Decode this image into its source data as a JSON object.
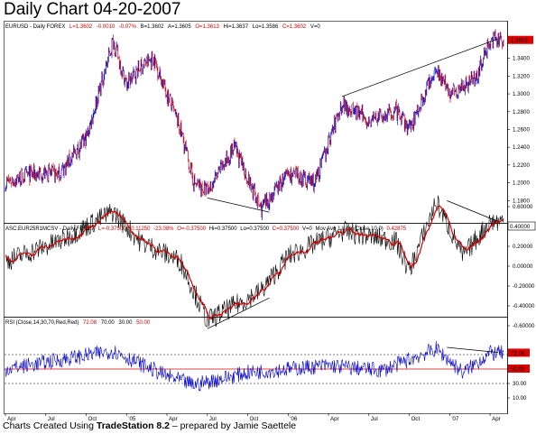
{
  "title": "Daily Chart 04-20-2007",
  "footer": {
    "prefix": "Charts Created Using ",
    "software": "TradeStation 8.2",
    "suffix": " – prepared by Jamie Saettele"
  },
  "colors": {
    "price_up": "#0000cc",
    "price_down": "#cc0000",
    "ma_line": "#d40000",
    "osc_line": "#000000",
    "rsi_line": "#0000cc",
    "rsi_mid": "#d40000",
    "last_box": "#e00000"
  },
  "chart_data": [
    {
      "type": "line",
      "header": {
        "symbol": "EURUSD - Daily  FOREX",
        "L": "L=1.3602",
        "chg": "-0.0010",
        "pct": "-0.07%",
        "B": "B=1.3602",
        "A": "A=1.3605",
        "O": "O=1.3613",
        "Hi": "Hi=1.3637",
        "Lo": "Lo=1.3586",
        "C": "C=1.3602",
        "V": "V=0"
      },
      "ylim": [
        1.1,
        1.4
      ],
      "y_ticks": [
        "1.3400",
        "1.3200",
        "1.3000",
        "1.2800",
        "1.2600",
        "1.2400",
        "1.2200",
        "1.2000",
        "1.1800"
      ],
      "last_value": "1.3602",
      "key_points": [
        {
          "x": "2004-04",
          "y": 1.2
        },
        {
          "x": "2004-06",
          "y": 1.21
        },
        {
          "x": "2004-08",
          "y": 1.21
        },
        {
          "x": "2004-10",
          "y": 1.25
        },
        {
          "x": "2004-12",
          "y": 1.36
        },
        {
          "x": "2005-01",
          "y": 1.31
        },
        {
          "x": "2005-02",
          "y": 1.33
        },
        {
          "x": "2005-03",
          "y": 1.34
        },
        {
          "x": "2005-05",
          "y": 1.26
        },
        {
          "x": "2005-06",
          "y": 1.2
        },
        {
          "x": "2005-07",
          "y": 1.19
        },
        {
          "x": "2005-09",
          "y": 1.24
        },
        {
          "x": "2005-11",
          "y": 1.17
        },
        {
          "x": "2006-01",
          "y": 1.21
        },
        {
          "x": "2006-03",
          "y": 1.2
        },
        {
          "x": "2006-05",
          "y": 1.29
        },
        {
          "x": "2006-07",
          "y": 1.27
        },
        {
          "x": "2006-09",
          "y": 1.28
        },
        {
          "x": "2006-10",
          "y": 1.26
        },
        {
          "x": "2006-12",
          "y": 1.33
        },
        {
          "x": "2007-01",
          "y": 1.3
        },
        {
          "x": "2007-03",
          "y": 1.32
        },
        {
          "x": "2007-04",
          "y": 1.36
        }
      ]
    },
    {
      "type": "line",
      "header": {
        "label": "ASC.EUR25R1MCSV - Daily  FOREX",
        "L": "L=-0.37500",
        "chg": "-0.11250",
        "pct": "-23.08%",
        "O": "O=-0.37500",
        "Hi": "Hi=0.37500",
        "Lo": "Lo=0.37500",
        "C": "C=0.37500",
        "V": "V=0",
        "ma": "Mov Avg 1 Line (Close,10,0)",
        "ma_val": "0.42875"
      },
      "ylim": [
        -0.8,
        0.8
      ],
      "y_ticks": [
        "0.60000",
        "0.40000",
        "0.20000",
        "0.00000",
        "-0.20000",
        "-0.40000",
        "-0.60000"
      ],
      "last_value": "0.40000",
      "key_points": [
        {
          "x": "2004-04",
          "y": 0.05
        },
        {
          "x": "2004-08",
          "y": 0.25
        },
        {
          "x": "2004-12",
          "y": 0.55
        },
        {
          "x": "2005-02",
          "y": 0.25
        },
        {
          "x": "2005-05",
          "y": 0.05
        },
        {
          "x": "2005-07",
          "y": -0.55
        },
        {
          "x": "2005-11",
          "y": -0.25
        },
        {
          "x": "2006-01",
          "y": 0.1
        },
        {
          "x": "2006-05",
          "y": 0.35
        },
        {
          "x": "2006-09",
          "y": 0.25
        },
        {
          "x": "2006-10",
          "y": -0.05
        },
        {
          "x": "2006-12",
          "y": 0.65
        },
        {
          "x": "2007-02",
          "y": 0.1
        },
        {
          "x": "2007-04",
          "y": 0.45
        }
      ]
    },
    {
      "type": "line",
      "header": {
        "label": "RSI (Close,14,30,70,Red,Red)",
        "v1": "72.08",
        "v2": "70.00",
        "v3": "30.00",
        "v4": "50.00"
      },
      "ylim": [
        0,
        100
      ],
      "y_ticks": [
        "70.00",
        "50.00",
        "30.00",
        "10.00"
      ],
      "ob_label": "72.08",
      "mid_label": "50.00",
      "key_points": [
        {
          "x": "2004-04",
          "y": 50
        },
        {
          "x": "2004-12",
          "y": 75
        },
        {
          "x": "2005-04",
          "y": 40
        },
        {
          "x": "2005-06",
          "y": 28
        },
        {
          "x": "2005-10",
          "y": 45
        },
        {
          "x": "2006-04",
          "y": 55
        },
        {
          "x": "2006-08",
          "y": 48
        },
        {
          "x": "2006-12",
          "y": 78
        },
        {
          "x": "2007-02",
          "y": 45
        },
        {
          "x": "2007-04",
          "y": 72
        }
      ]
    }
  ],
  "x_axis": {
    "ticks": [
      "Apr",
      "Jul",
      "Oct",
      "'05",
      "Apr",
      "Jul",
      "Oct",
      "'06",
      "Apr",
      "Jul",
      "Oct",
      "'07",
      "Apr"
    ]
  }
}
